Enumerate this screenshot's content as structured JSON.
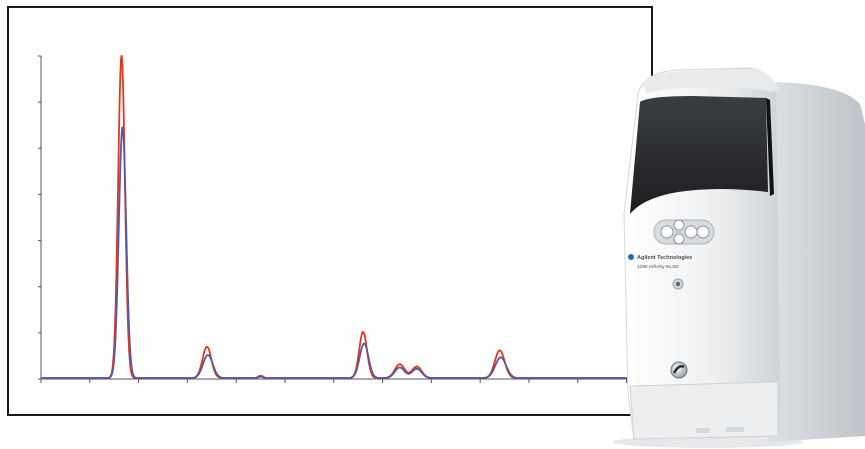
{
  "chart_data": {
    "type": "line",
    "title": "",
    "xlabel": "",
    "ylabel": "",
    "x_range": [
      0,
      12.5
    ],
    "y_range": [
      0,
      7
    ],
    "x_ticks": [
      0,
      1,
      2,
      3,
      4,
      5,
      6,
      7,
      8,
      9,
      10,
      11,
      12
    ],
    "y_ticks": [
      0,
      1,
      2,
      3,
      4,
      5,
      6,
      7
    ],
    "grid": false,
    "legend": "none",
    "series": [
      {
        "color": "#e8361e",
        "peaks": [
          {
            "x": 1.65,
            "height": 7.0,
            "width": 0.07
          },
          {
            "x": 3.4,
            "height": 0.68,
            "width": 0.09
          },
          {
            "x": 4.5,
            "height": 0.05,
            "width": 0.05
          },
          {
            "x": 6.6,
            "height": 1.0,
            "width": 0.08
          },
          {
            "x": 7.35,
            "height": 0.3,
            "width": 0.1
          },
          {
            "x": 7.7,
            "height": 0.25,
            "width": 0.1
          },
          {
            "x": 9.4,
            "height": 0.6,
            "width": 0.1
          }
        ]
      },
      {
        "color": "#5a57a6",
        "peaks": [
          {
            "x": 1.67,
            "height": 5.45,
            "width": 0.075
          },
          {
            "x": 3.42,
            "height": 0.5,
            "width": 0.1
          },
          {
            "x": 4.5,
            "height": 0.03,
            "width": 0.05
          },
          {
            "x": 6.62,
            "height": 0.75,
            "width": 0.09
          },
          {
            "x": 7.35,
            "height": 0.23,
            "width": 0.1
          },
          {
            "x": 7.7,
            "height": 0.2,
            "width": 0.1
          },
          {
            "x": 9.42,
            "height": 0.45,
            "width": 0.11
          }
        ]
      }
    ]
  },
  "device": {
    "brand": "Agilent Technologies",
    "model": "1290 Infinity ELSD",
    "colors": {
      "body": "#f2f3f4",
      "shadow": "#c9cdd2",
      "window": "#2a2c30",
      "accent": "#e8361e"
    },
    "icons": [
      "keypad-icon",
      "knob-icon",
      "outlet-connector-icon"
    ]
  }
}
